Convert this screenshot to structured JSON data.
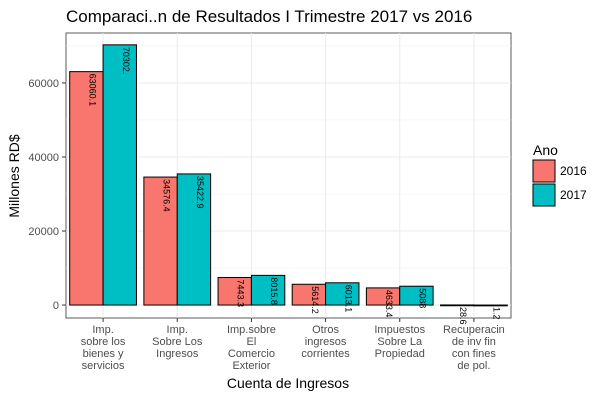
{
  "chart_data": {
    "type": "bar",
    "title": "Comparaci..n de Resultados I Trimestre 2017 vs 2016",
    "xlabel": "Cuenta de Ingresos",
    "ylabel": "Millones RD$",
    "ylim": [
      -3500,
      73500
    ],
    "yticks": [
      0,
      20000,
      40000,
      60000
    ],
    "ytick_labels": [
      "0",
      "20000",
      "40000",
      "60000"
    ],
    "grid": true,
    "legend_position": "right",
    "legend_title": "Ano",
    "categories": [
      [
        "Imp.",
        "sobre los",
        "bienes y",
        "servicios"
      ],
      [
        "Imp.",
        "Sobre Los",
        "Ingresos"
      ],
      [
        "Imp.sobre",
        "El",
        "Comercio",
        "Exterior"
      ],
      [
        "Otros",
        "ingresos",
        "corrientes"
      ],
      [
        "Impuestos",
        "Sobre La",
        "Propiedad"
      ],
      [
        "Recuperacin",
        "de inv fin",
        "con fines",
        "de pol."
      ]
    ],
    "series": [
      {
        "name": "2016",
        "color": "#F8766D",
        "values": [
          63060.1,
          34576.4,
          7443.3,
          5614.2,
          4633.4,
          28.6
        ],
        "labels": [
          "63060.1",
          "34576.4",
          "7443.3",
          "5614.2",
          "4633.4",
          "28.6"
        ]
      },
      {
        "name": "2017",
        "color": "#00BFC4",
        "values": [
          70302,
          35422.9,
          8015.8,
          6013.1,
          5088,
          1.2
        ],
        "labels": [
          "70302.",
          "35422.9",
          "8015.8",
          "6013.1",
          "5088",
          "1.2"
        ]
      }
    ]
  }
}
